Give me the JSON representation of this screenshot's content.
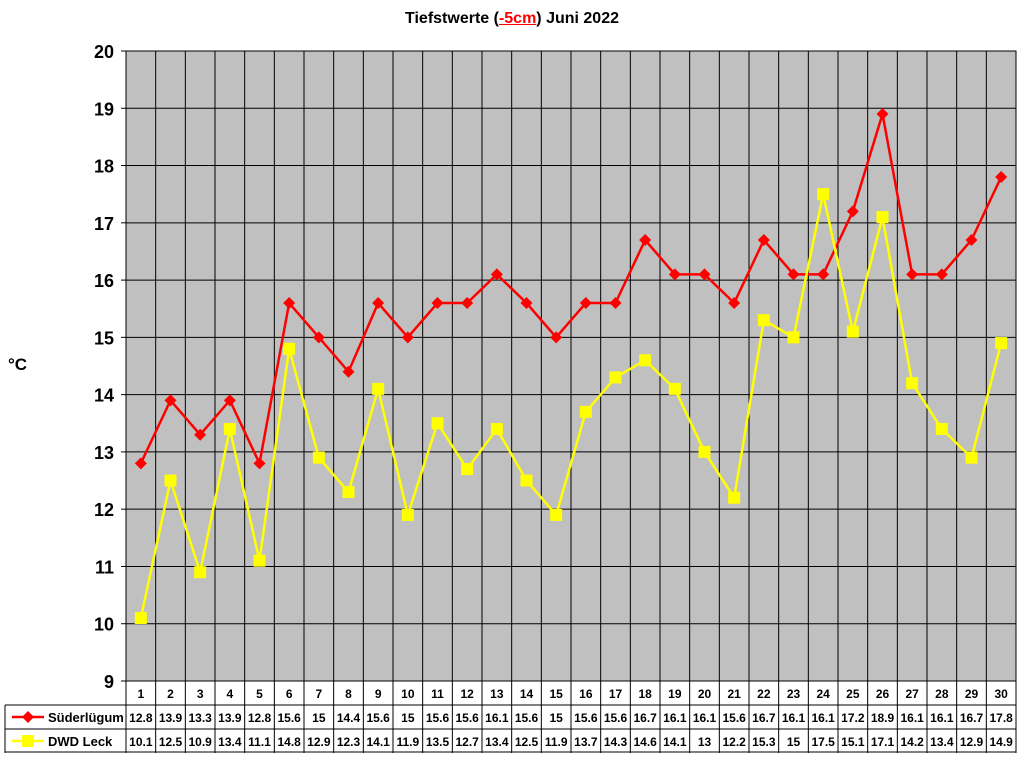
{
  "chart_data": {
    "type": "line",
    "title": {
      "prefix": "Tiefstwerte (",
      "highlight": "-5cm",
      "suffix": ") Juni 2022"
    },
    "ylabel": "°C",
    "ylim": [
      9,
      20
    ],
    "ytick_step": 1,
    "grid": true,
    "plot_background": "#c0c0c0",
    "categories": [
      "1",
      "2",
      "3",
      "4",
      "5",
      "6",
      "7",
      "8",
      "9",
      "10",
      "11",
      "12",
      "13",
      "14",
      "15",
      "16",
      "17",
      "18",
      "19",
      "20",
      "21",
      "22",
      "23",
      "24",
      "25",
      "26",
      "27",
      "28",
      "29",
      "30"
    ],
    "series": [
      {
        "name": "Süderlügum",
        "color": "#ff0000",
        "marker": "diamond",
        "values": [
          12.8,
          13.9,
          13.3,
          13.9,
          12.8,
          15.6,
          15,
          14.4,
          15.6,
          15,
          15.6,
          15.6,
          16.1,
          15.6,
          15,
          15.6,
          15.6,
          16.7,
          16.1,
          16.1,
          15.6,
          16.7,
          16.1,
          16.1,
          17.2,
          18.9,
          16.1,
          16.1,
          16.7,
          17.8
        ],
        "labels": [
          "12.8",
          "13.9",
          "13.3",
          "13.9",
          "12.8",
          "15.6",
          "15",
          "14.4",
          "15.6",
          "15",
          "15.6",
          "15.6",
          "16.1",
          "15.6",
          "15",
          "15.6",
          "15.6",
          "16.7",
          "16.1",
          "16.1",
          "15.6",
          "16.7",
          "16.1",
          "16.1",
          "17.2",
          "18.9",
          "16.1",
          "16.1",
          "16.7",
          "17.8"
        ]
      },
      {
        "name": "DWD Leck",
        "color": "#ffff00",
        "marker": "square",
        "values": [
          10.1,
          12.5,
          10.9,
          13.4,
          11.1,
          14.8,
          12.9,
          12.3,
          14.1,
          11.9,
          13.5,
          12.7,
          13.4,
          12.5,
          11.9,
          13.7,
          14.3,
          14.6,
          14.1,
          13,
          12.2,
          15.3,
          15,
          17.5,
          15.1,
          17.1,
          14.2,
          13.4,
          12.9,
          14.9
        ],
        "labels": [
          "10.1",
          "12.5",
          "10.9",
          "13.4",
          "11.1",
          "14.8",
          "12.9",
          "12.3",
          "14.1",
          "11.9",
          "13.5",
          "12.7",
          "13.4",
          "12.5",
          "11.9",
          "13.7",
          "14.3",
          "14.6",
          "14.1",
          "13",
          "12.2",
          "15.3",
          "15",
          "17.5",
          "15.1",
          "17.1",
          "14.2",
          "13.4",
          "12.9",
          "14.9"
        ]
      }
    ]
  }
}
